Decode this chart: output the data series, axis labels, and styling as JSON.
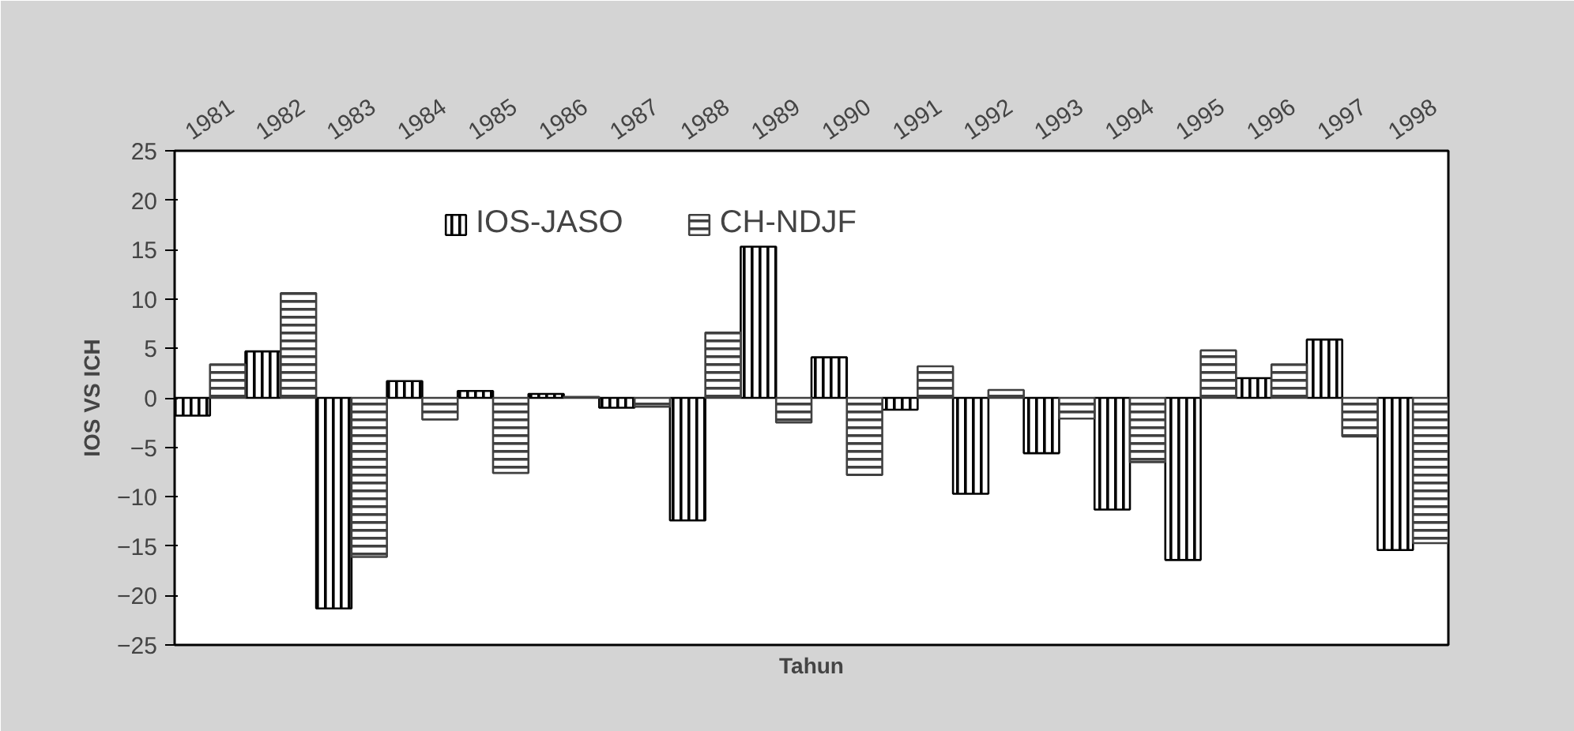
{
  "chart_data": {
    "type": "bar",
    "xlabel": "Tahun",
    "ylabel": "IOS VS ICH",
    "categories": [
      "1981",
      "1982",
      "1983",
      "1984",
      "1985",
      "1986",
      "1987",
      "1988",
      "1989",
      "1990",
      "1991",
      "1992",
      "1993",
      "1994",
      "1995",
      "1996",
      "1997",
      "1998"
    ],
    "series": [
      {
        "name": "IOS-JASO",
        "color": "#000000",
        "values": [
          -1.8,
          4.7,
          -21.3,
          1.7,
          0.7,
          0.4,
          -1.0,
          -12.4,
          15.3,
          4.1,
          -1.2,
          -9.7,
          -5.6,
          -11.3,
          -16.4,
          2.0,
          5.9,
          -15.4
        ]
      },
      {
        "name": "CH-NDJF",
        "color": "#404040",
        "values": [
          3.4,
          10.6,
          -16.1,
          -2.2,
          -7.6,
          0.1,
          -0.9,
          6.6,
          -2.5,
          -7.8,
          3.2,
          0.8,
          -2.1,
          -6.5,
          4.8,
          3.4,
          -3.9,
          -14.7
        ]
      }
    ],
    "ylim": [
      -25,
      25
    ],
    "yticks": [
      -25,
      -20,
      -15,
      -10,
      -5,
      0,
      5,
      10,
      15,
      20,
      25
    ],
    "grid": false,
    "legend": "top"
  }
}
